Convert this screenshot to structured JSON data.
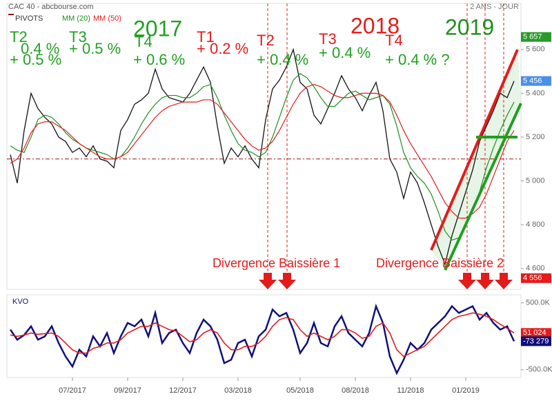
{
  "chart_data": [
    {
      "type": "line",
      "title": "CAC 40 - abcbourse.com",
      "subtitle": "2 ANS - JOUR",
      "categories": [
        null,
        null,
        null,
        null,
        null,
        null,
        null,
        null,
        null,
        "07/2017",
        null,
        null,
        null,
        null,
        null,
        null,
        null,
        "09/2017",
        null,
        null,
        null,
        null,
        null,
        null,
        null,
        "12/2017",
        null,
        null,
        null,
        null,
        null,
        null,
        null,
        "03/2018",
        null,
        null,
        null,
        null,
        null,
        null,
        null,
        null,
        "05/2018",
        null,
        null,
        null,
        null,
        null,
        null,
        null,
        "08/2018",
        null,
        null,
        null,
        null,
        null,
        null,
        null,
        "11/2018",
        null,
        null,
        null,
        null,
        null,
        null,
        null,
        "01/2019",
        null,
        null,
        null,
        null,
        null,
        null,
        null
      ],
      "values": [
        5120,
        4990,
        5230,
        5400,
        5330,
        5290,
        5260,
        5200,
        5180,
        5130,
        5150,
        5110,
        5160,
        5100,
        5090,
        5060,
        5230,
        5280,
        5350,
        5370,
        5400,
        5510,
        5420,
        5380,
        5370,
        5360,
        5400,
        5460,
        5520,
        5450,
        5250,
        5080,
        5150,
        5110,
        5160,
        5100,
        5060,
        5280,
        5420,
        5460,
        5520,
        5600,
        5450,
        5420,
        5300,
        5260,
        5330,
        5400,
        5480,
        5420,
        5380,
        5320,
        5390,
        5450,
        5320,
        5100,
        5040,
        4920,
        5040,
        4990,
        4900,
        4800,
        4700,
        4620,
        4750,
        4850,
        4950,
        5050,
        5180,
        5250,
        5320,
        5400,
        5380,
        5456
      ],
      "color": "#111111",
      "series": [
        {
          "name": "MM (20)",
          "color": "#1f8f1f",
          "values": [
            5160,
            5140,
            5130,
            5200,
            5280,
            5300,
            5290,
            5260,
            5220,
            5190,
            5170,
            5150,
            5140,
            5130,
            5120,
            5100,
            5110,
            5150,
            5200,
            5260,
            5310,
            5350,
            5380,
            5390,
            5390,
            5380,
            5380,
            5400,
            5430,
            5440,
            5380,
            5300,
            5230,
            5170,
            5140,
            5130,
            5110,
            5130,
            5200,
            5290,
            5380,
            5460,
            5490,
            5470,
            5430,
            5380,
            5340,
            5340,
            5370,
            5400,
            5410,
            5390,
            5370,
            5380,
            5390,
            5350,
            5250,
            5130,
            5060,
            5020,
            4990,
            4940,
            4860,
            4770,
            4730,
            4740,
            4800,
            4870,
            4950,
            5060,
            5150,
            5230,
            5300,
            5360
          ]
        },
        {
          "name": "MM (50)",
          "color": "#e41b1b",
          "values": [
            5080,
            5100,
            5150,
            5220,
            5260,
            5270,
            5270,
            5250,
            5230,
            5200,
            5170,
            5150,
            5130,
            5110,
            5100,
            5100,
            5110,
            5130,
            5170,
            5210,
            5250,
            5290,
            5320,
            5340,
            5350,
            5360,
            5360,
            5360,
            5370,
            5370,
            5350,
            5310,
            5270,
            5230,
            5190,
            5160,
            5140,
            5150,
            5180,
            5230,
            5290,
            5350,
            5400,
            5430,
            5440,
            5430,
            5410,
            5390,
            5380,
            5380,
            5390,
            5400,
            5400,
            5400,
            5390,
            5360,
            5300,
            5230,
            5170,
            5120,
            5070,
            5020,
            4960,
            4900,
            4860,
            4830,
            4830,
            4850,
            4880,
            4940,
            5020,
            5100,
            5180,
            5230
          ]
        }
      ],
      "pivot": {
        "name": "PIVOTS",
        "value": 5100,
        "color": "#9b1010"
      },
      "ylim": [
        4505,
        5810
      ],
      "yticks": [
        {
          "value": 4600,
          "label": "4 600"
        },
        {
          "value": 4800,
          "label": "4 800"
        },
        {
          "value": 5000,
          "label": "5 000"
        },
        {
          "value": 5200,
          "label": "5 200"
        },
        {
          "value": 5400,
          "label": "5 400"
        },
        {
          "value": 5600,
          "label": "5 600"
        }
      ],
      "level_labels": [
        {
          "value": 5657,
          "label": "5 657",
          "color": "#2a9a2a"
        },
        {
          "value": 5456,
          "label": "5 456",
          "color": "#4a8fe8"
        },
        {
          "value": 4556,
          "label": "4 556",
          "color": "#e41b1b"
        }
      ],
      "annotations": [
        {
          "text": "T2",
          "color": "#22a022"
        },
        {
          "text": "0.4 %",
          "color": "#22a022"
        },
        {
          "text": "+ 0.5 %",
          "color": "#22a022"
        },
        {
          "text": "T3",
          "color": "#22a022"
        },
        {
          "text": "+ 0.5 %",
          "color": "#22a022"
        },
        {
          "text": "T4",
          "color": "#22a022"
        },
        {
          "text": "+ 0.6 %",
          "color": "#22a022"
        },
        {
          "text": "2017",
          "color": "#22a022"
        },
        {
          "text": "T1",
          "color": "#e41b1b"
        },
        {
          "text": "+ 0.2 %",
          "color": "#e41b1b"
        },
        {
          "text": "T2",
          "color": "#e41b1b"
        },
        {
          "text": "+ 0.4 %",
          "color": "#22a022"
        },
        {
          "text": "T3",
          "color": "#e41b1b"
        },
        {
          "text": "+ 0.4 %",
          "color": "#22a022"
        },
        {
          "text": "2018",
          "color": "#e41b1b"
        },
        {
          "text": "T4",
          "color": "#e41b1b"
        },
        {
          "text": "+ 0.4 % ?",
          "color": "#22a022"
        },
        {
          "text": "2019",
          "color": "#1f8f1f"
        },
        {
          "text": "Divergence Baissière 1",
          "color": "#e41b1b"
        },
        {
          "text": "Divergence Baissière 2",
          "color": "#e41b1b"
        }
      ]
    },
    {
      "type": "line",
      "title": "KVO",
      "series": [
        {
          "name": "KVO",
          "color": "#10107a",
          "values": [
            100000,
            -50000,
            20000,
            150000,
            -50000,
            0,
            150000,
            -100000,
            -300000,
            -450000,
            -200000,
            -300000,
            0,
            -150000,
            50000,
            -250000,
            0,
            200000,
            150000,
            250000,
            0,
            350000,
            -100000,
            50000,
            100000,
            -100000,
            -250000,
            50000,
            250000,
            150000,
            -50000,
            -400000,
            -350000,
            -100000,
            -50000,
            -300000,
            0,
            100000,
            400000,
            300000,
            350000,
            100000,
            -250000,
            -100000,
            200000,
            -100000,
            -150000,
            150000,
            300000,
            50000,
            -50000,
            -150000,
            50000,
            450000,
            200000,
            -300000,
            -550000,
            -350000,
            -100000,
            -200000,
            -100000,
            100000,
            200000,
            300000,
            450000,
            350000,
            400000,
            450000,
            250000,
            350000,
            200000,
            100000,
            150000,
            -73279
          ]
        },
        {
          "color": "#e41b1b",
          "values": [
            20000,
            0,
            20000,
            50000,
            30000,
            40000,
            50000,
            0,
            -100000,
            -200000,
            -250000,
            -250000,
            -180000,
            -150000,
            -100000,
            -100000,
            -50000,
            50000,
            100000,
            150000,
            150000,
            200000,
            150000,
            100000,
            80000,
            0,
            -80000,
            -50000,
            50000,
            100000,
            50000,
            -100000,
            -200000,
            -200000,
            -150000,
            -150000,
            -100000,
            0,
            150000,
            250000,
            280000,
            250000,
            100000,
            0,
            50000,
            0,
            -50000,
            0,
            100000,
            100000,
            50000,
            -30000,
            0,
            150000,
            200000,
            50000,
            -200000,
            -300000,
            -250000,
            -200000,
            -150000,
            -50000,
            50000,
            150000,
            250000,
            300000,
            320000,
            350000,
            330000,
            300000,
            250000,
            180000,
            120000,
            51024
          ]
        }
      ],
      "ylim": [
        -615000,
        620000
      ],
      "yticks": [
        {
          "value": -500000,
          "label": "-500.0K"
        },
        {
          "value": 500000,
          "label": "500.0K"
        }
      ],
      "level_labels": [
        {
          "value": 51024,
          "label": "51 024",
          "color": "#e41b1b"
        },
        {
          "value": -73279,
          "label": "-73 279",
          "color": "#10107a"
        }
      ]
    }
  ]
}
